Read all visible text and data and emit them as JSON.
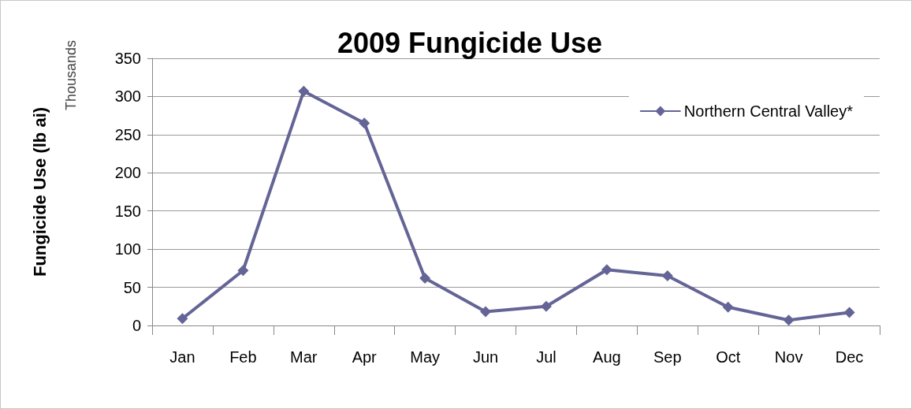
{
  "chart_data": {
    "type": "line",
    "title": "2009 Fungicide Use",
    "ylabel": "Fungicide Use (lb ai)",
    "annotations": [
      "Thousands"
    ],
    "categories": [
      "Jan",
      "Feb",
      "Mar",
      "Apr",
      "May",
      "Jun",
      "Jul",
      "Aug",
      "Sep",
      "Oct",
      "Nov",
      "Dec"
    ],
    "series": [
      {
        "name": "Northern Central Valley*",
        "color": "#646496",
        "values": [
          9,
          72,
          307,
          265,
          62,
          18,
          25,
          73,
          65,
          24,
          7,
          17
        ]
      }
    ],
    "ylim": [
      0,
      350
    ],
    "yticks": [
      0,
      50,
      100,
      150,
      200,
      250,
      300,
      350
    ],
    "grid": "y",
    "legend": "top right",
    "marker": "diamond",
    "line_style": "solid"
  }
}
